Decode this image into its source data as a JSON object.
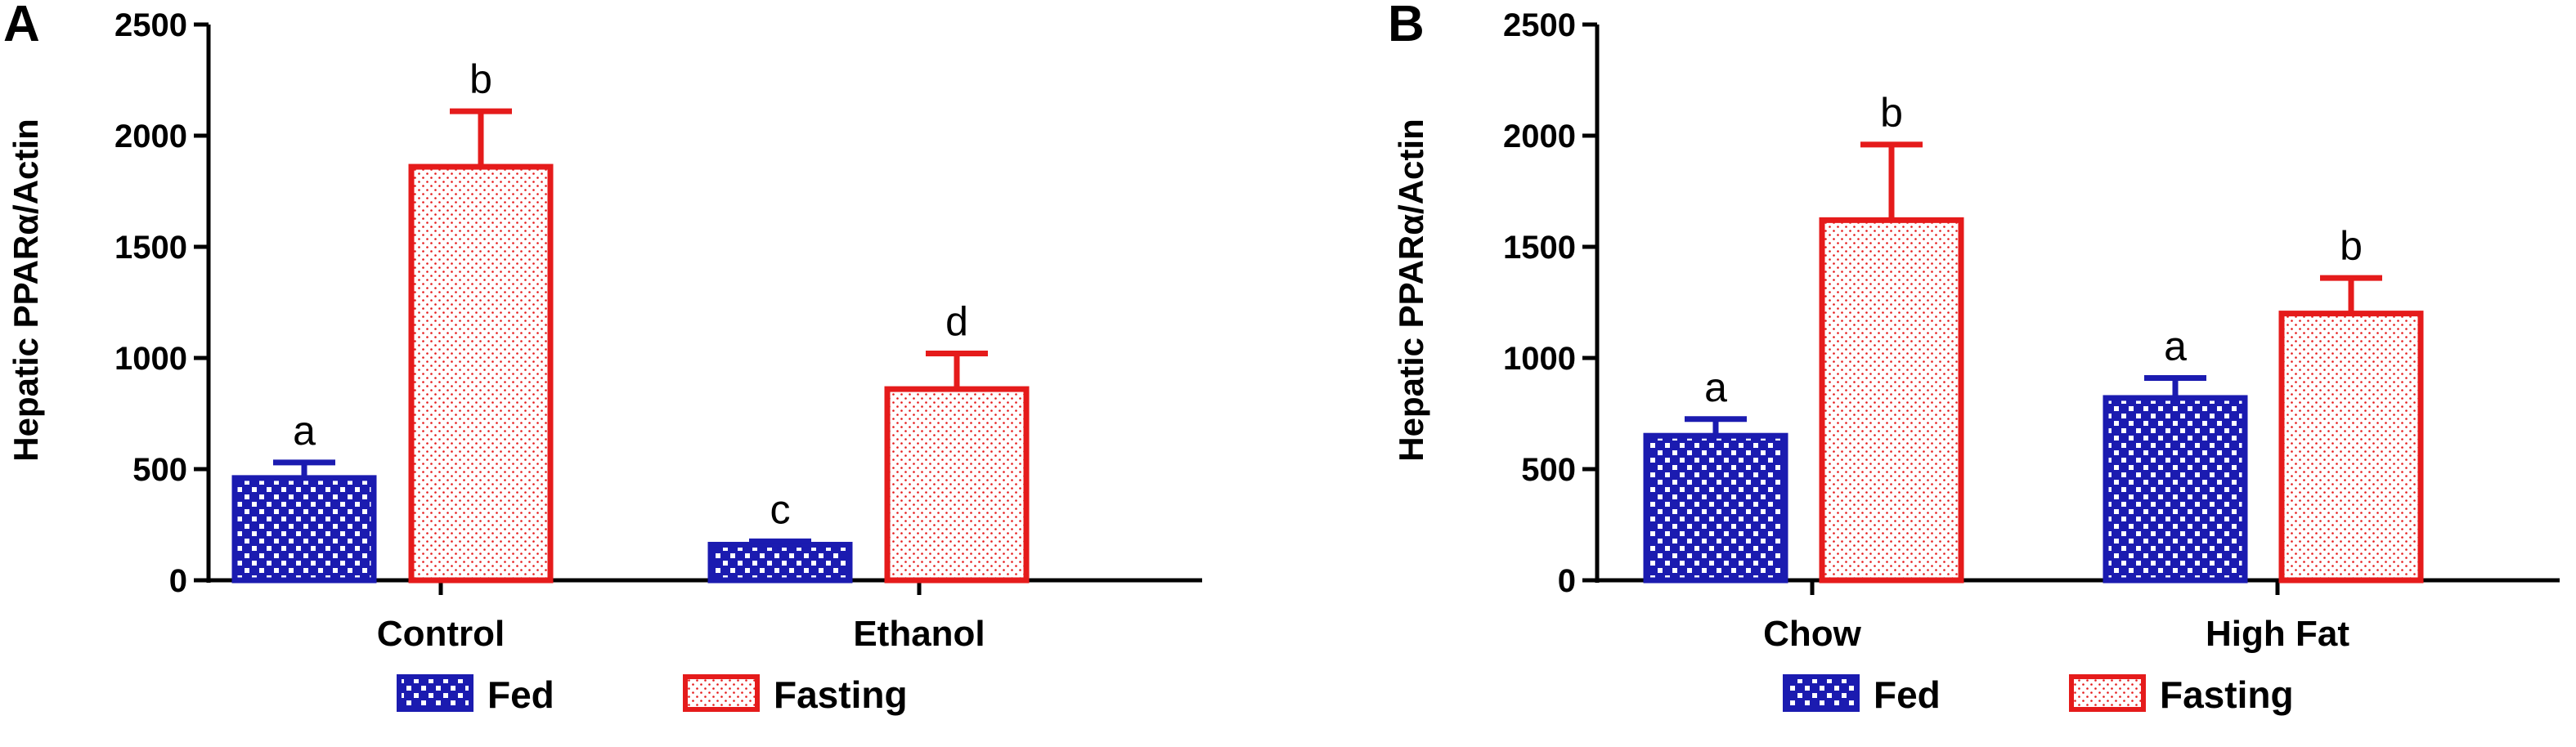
{
  "chart_data": [
    {
      "type": "bar",
      "panel": "A",
      "ylabel": "Hepatic PPARα/Actin",
      "ylim": [
        0,
        2500
      ],
      "yticks": [
        0,
        500,
        1000,
        1500,
        2000,
        2500
      ],
      "categories": [
        "Control",
        "Ethanol"
      ],
      "series": [
        {
          "name": "Fed",
          "values": [
            460,
            160
          ],
          "errors": [
            70,
            15
          ],
          "letters": [
            "a",
            "c"
          ]
        },
        {
          "name": "Fasting",
          "values": [
            1860,
            860
          ],
          "errors": [
            250,
            160
          ],
          "letters": [
            "b",
            "d"
          ]
        }
      ],
      "legend": "bottom"
    },
    {
      "type": "bar",
      "panel": "B",
      "ylabel": "Hepatic PPARα/Actin",
      "ylim": [
        0,
        2500
      ],
      "yticks": [
        0,
        500,
        1000,
        1500,
        2000,
        2500
      ],
      "categories": [
        "Chow",
        "High Fat"
      ],
      "series": [
        {
          "name": "Fed",
          "values": [
            650,
            820
          ],
          "errors": [
            75,
            90
          ],
          "letters": [
            "a",
            "a"
          ]
        },
        {
          "name": "Fasting",
          "values": [
            1620,
            1200
          ],
          "errors": [
            340,
            160
          ],
          "letters": [
            "b",
            "b"
          ]
        }
      ],
      "legend": "bottom"
    }
  ],
  "colors": {
    "fed": "#1b1bb0",
    "fasting": "#e51b1b"
  }
}
